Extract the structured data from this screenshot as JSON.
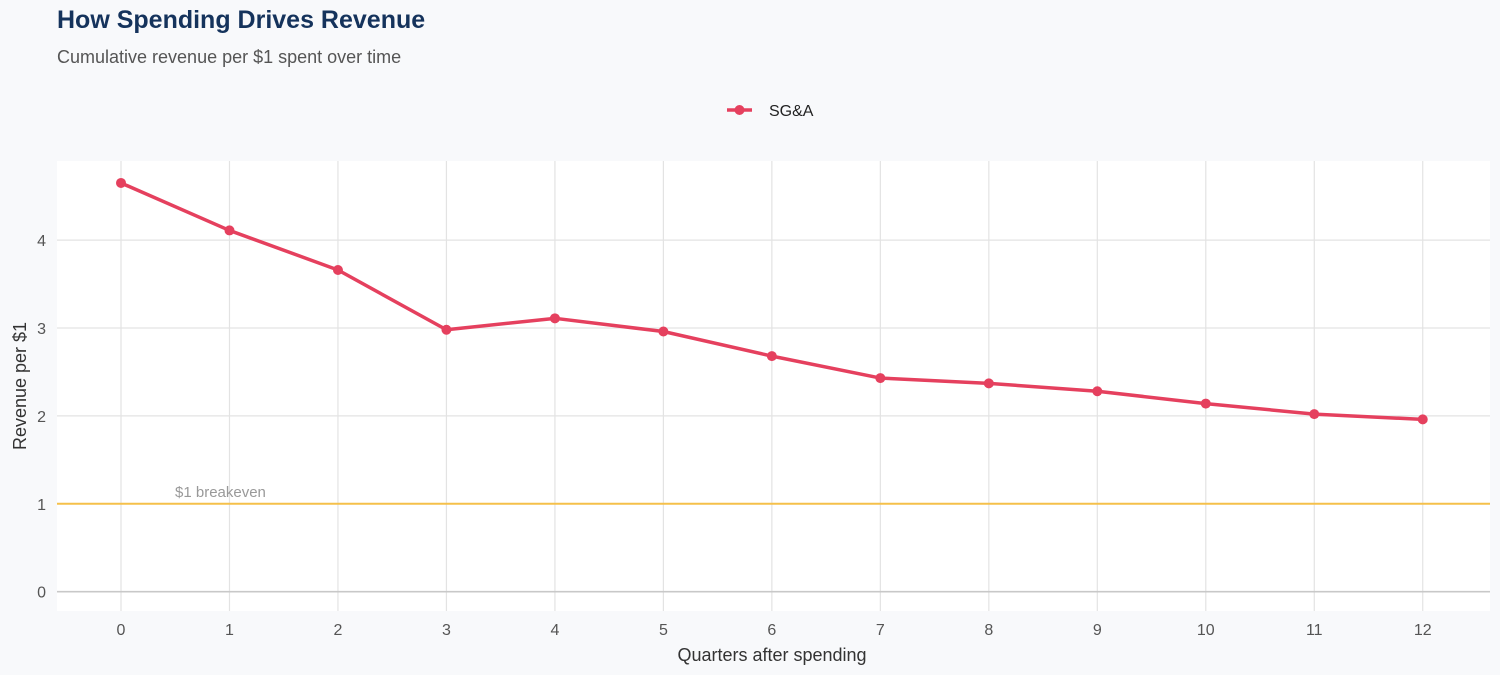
{
  "chart_data": {
    "type": "line",
    "title": "How Spending Drives Revenue",
    "subtitle": "Cumulative revenue per $1 spent over time",
    "xlabel": "Quarters after spending",
    "ylabel": "Revenue per $1",
    "x": [
      0,
      1,
      2,
      3,
      4,
      5,
      6,
      7,
      8,
      9,
      10,
      11,
      12
    ],
    "series": [
      {
        "name": "SG&A",
        "color": "#e5405e",
        "values": [
          4.65,
          4.11,
          3.66,
          2.98,
          3.11,
          2.96,
          2.68,
          2.43,
          2.37,
          2.28,
          2.14,
          2.02,
          1.96
        ]
      }
    ],
    "xticks": [
      0,
      1,
      2,
      3,
      4,
      5,
      6,
      7,
      8,
      9,
      10,
      11,
      12
    ],
    "yticks": [
      0,
      1,
      2,
      3,
      4
    ],
    "xlim": [
      -0.59,
      12.62
    ],
    "ylim": [
      -0.22,
      4.9
    ],
    "grid": true,
    "legend_position": "top",
    "reference_line": {
      "value": 1,
      "label": "$1 breakeven",
      "color": "#f5c04a"
    }
  }
}
